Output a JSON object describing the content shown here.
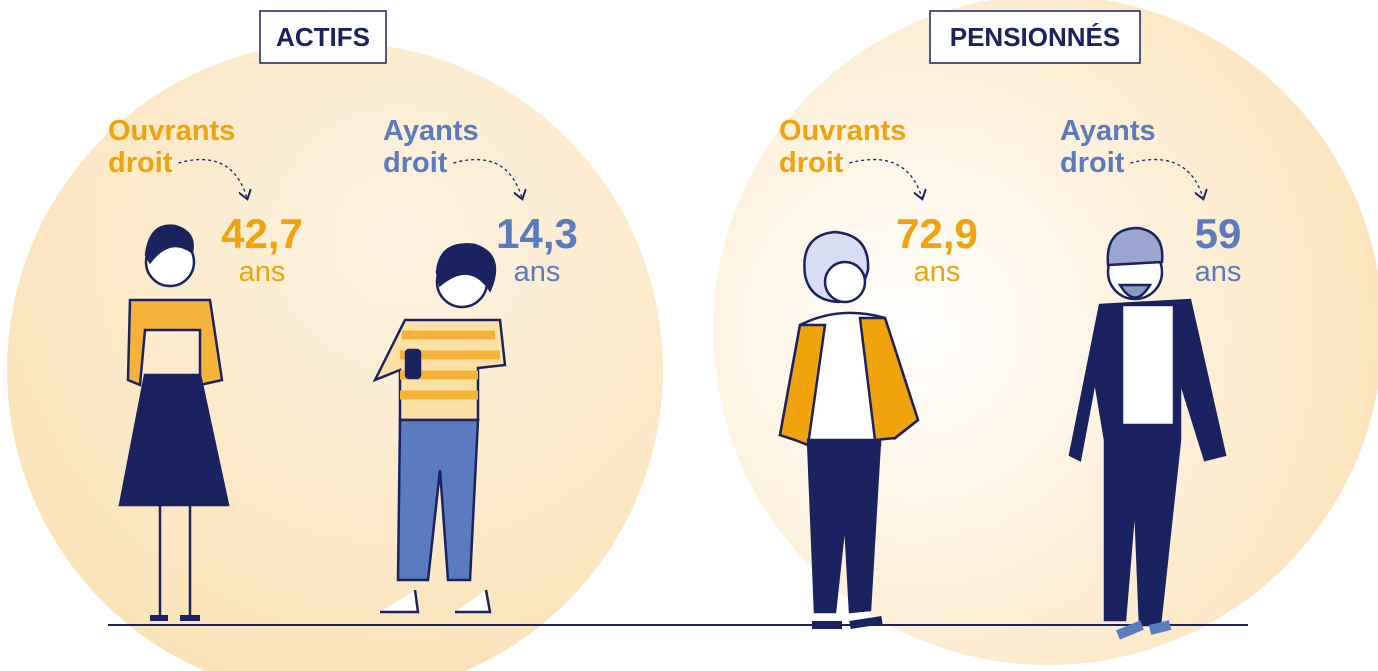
{
  "groups": [
    {
      "title": "ACTIFS",
      "items": [
        {
          "label": [
            "Ouvrants",
            "droit"
          ],
          "value": "42,7",
          "unit": "ans"
        },
        {
          "label": [
            "Ayants",
            "droit"
          ],
          "value": "14,3",
          "unit": "ans"
        }
      ]
    },
    {
      "title": "PENSIONNÉS",
      "items": [
        {
          "label": [
            "Ouvrants",
            "droit"
          ],
          "value": "72,9",
          "unit": "ans"
        },
        {
          "label": [
            "Ayants",
            "droit"
          ],
          "value": "59",
          "unit": "ans"
        }
      ]
    }
  ]
}
